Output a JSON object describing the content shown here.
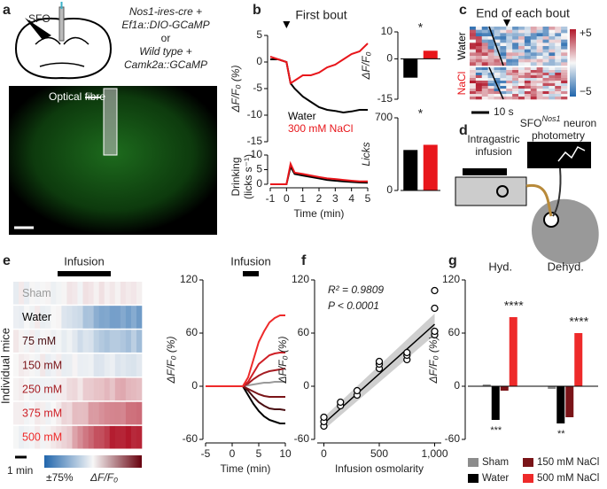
{
  "figure": {
    "panel_labels": [
      "a",
      "b",
      "c",
      "d",
      "e",
      "f",
      "g"
    ],
    "a": {
      "region": "SFO",
      "lines": [
        "Nos1-ires-cre +",
        "Ef1a::DIO-GCaMP",
        "or",
        "Wild type +",
        "Camk2a::GCaMP"
      ],
      "fibre": "Optical fibre"
    },
    "d": {
      "infusion": [
        "Intragastric",
        "infusion"
      ],
      "photometry": [
        "SFO",
        "Nos1",
        " neuron",
        "photometry"
      ]
    }
  },
  "chart_data": [
    {
      "type": "line",
      "annotation": "First bout",
      "ylabel": "ΔF/F₀ (%)",
      "x": [
        -1,
        -0.5,
        0,
        0.25,
        0.5,
        1,
        1.5,
        2,
        2.5,
        3,
        3.5,
        4,
        4.5,
        5
      ],
      "xlim": [
        -1,
        5
      ],
      "ylim": [
        -15,
        5
      ],
      "yticks": [
        -15,
        -10,
        -5,
        0,
        5
      ],
      "series": [
        {
          "name": "Water",
          "color": "#000000",
          "values": [
            0.5,
            0.5,
            0,
            -4,
            -5,
            -6.5,
            -7.5,
            -8.5,
            -9,
            -9.2,
            -9.5,
            -9.3,
            -9,
            -9
          ]
        },
        {
          "name": "300 mM NaCl",
          "color": "#e8161b",
          "values": [
            1,
            0.5,
            0,
            -4,
            -3.5,
            -2.5,
            -2.5,
            -2,
            -1,
            -0.5,
            0.5,
            1.5,
            2,
            3.5
          ]
        }
      ]
    },
    {
      "type": "line",
      "ylabel_lines": [
        "Drinking",
        "(licks s⁻¹)"
      ],
      "xlabel": "Time (min)",
      "x": [
        -1,
        -0.5,
        0,
        0.25,
        0.5,
        1,
        1.5,
        2,
        2.5,
        3,
        3.5,
        4,
        4.5,
        5
      ],
      "xlim": [
        -1,
        5
      ],
      "xticks": [
        -1,
        0,
        1,
        2,
        3,
        4,
        5
      ],
      "ylim": [
        0,
        10
      ],
      "yticks": [
        0,
        5,
        10
      ],
      "series": [
        {
          "color": "#000000",
          "values": [
            0,
            0,
            0,
            6,
            3.5,
            3,
            2.5,
            2,
            1.5,
            1.2,
            1,
            0.8,
            0.6,
            0.5
          ]
        },
        {
          "color": "#e8161b",
          "values": [
            0,
            0,
            0,
            7,
            4,
            3.5,
            3,
            2.5,
            2,
            1.8,
            1.5,
            1.2,
            1,
            1
          ]
        }
      ]
    },
    {
      "type": "bar",
      "ylabel": "ΔF/F₀",
      "annotation": "*",
      "categories": [
        null,
        null
      ],
      "values": [
        -7,
        3
      ],
      "colors": [
        "#000000",
        "#e8161b"
      ],
      "ylim": [
        -15,
        10
      ],
      "yticks": [
        -15,
        0,
        10
      ]
    },
    {
      "type": "bar",
      "ylabel": "Licks",
      "annotation": "*",
      "categories": [
        null,
        null
      ],
      "values": [
        390,
        440
      ],
      "colors": [
        "#000000",
        "#e8161b"
      ],
      "ylim": [
        0,
        700
      ],
      "yticks": [
        0,
        700
      ]
    },
    {
      "type": "heatmap",
      "title": "End of each bout",
      "rows": [
        "Water",
        "NaCl"
      ],
      "row_colors": [
        "#000000",
        "#e8161b"
      ],
      "scale_bar": "10 s",
      "colorbar_ticks": [
        {
          "value": 5,
          "label": "+5"
        },
        {
          "value": -5,
          "label": "−5"
        }
      ]
    },
    {
      "type": "heatmap",
      "annotation": "Infusion",
      "ylabel": "Individual mice",
      "rows": [
        "Sham",
        "Water",
        "75 mM",
        "150 mM",
        "250 mM",
        "375 mM",
        "500 mM"
      ],
      "scale_bar": "1 min",
      "colorbar_ticks": [
        {
          "value": 75,
          "label": "±75%"
        }
      ],
      "colorbar_label": "ΔF/F₀"
    },
    {
      "type": "line",
      "annotation": "Infusion",
      "ylabel": "ΔF/F₀ (%)",
      "xlabel": "Time (min)",
      "x": [
        -5,
        -2.5,
        0,
        2,
        3,
        4,
        5,
        6,
        7,
        8,
        9,
        10
      ],
      "xlim": [
        -5,
        10
      ],
      "xticks": [
        -5,
        0,
        5,
        10
      ],
      "ylim": [
        -60,
        120
      ],
      "yticks": [
        -60,
        0,
        60,
        120
      ],
      "series": [
        {
          "color": "#9a9a9a",
          "values": [
            0,
            0,
            0,
            0,
            1,
            2,
            3,
            4,
            4,
            5,
            5,
            5
          ]
        },
        {
          "color": "#000000",
          "values": [
            0,
            0,
            0,
            0,
            -10,
            -20,
            -28,
            -34,
            -38,
            -40,
            -42,
            -42
          ]
        },
        {
          "color": "#4a0f12",
          "values": [
            0,
            0,
            0,
            0,
            -5,
            -12,
            -18,
            -22,
            -25,
            -26,
            -26,
            -27
          ]
        },
        {
          "color": "#7a1418",
          "values": [
            0,
            0,
            0,
            0,
            -3,
            -6,
            -9,
            -11,
            -12,
            -12,
            -12,
            -12
          ]
        },
        {
          "color": "#a51c22",
          "values": [
            0,
            0,
            0,
            0,
            3,
            8,
            12,
            15,
            17,
            18,
            19,
            20
          ]
        },
        {
          "color": "#cf1f26",
          "values": [
            0,
            0,
            0,
            0,
            5,
            15,
            25,
            30,
            35,
            37,
            38,
            38
          ]
        },
        {
          "color": "#ee2a2a",
          "values": [
            0,
            0,
            0,
            0,
            10,
            30,
            50,
            62,
            72,
            77,
            80,
            80
          ]
        }
      ]
    },
    {
      "type": "scatter",
      "xlabel": "Infusion osmolarity",
      "ylabel": "ΔF/F₀ (%)",
      "annotations": [
        "R² = 0.9809",
        "P < 0.0001"
      ],
      "x": [
        0,
        0,
        0,
        150,
        150,
        300,
        300,
        500,
        500,
        500,
        750,
        750,
        750,
        1000,
        1000,
        1000,
        1000
      ],
      "values": [
        -45,
        -40,
        -35,
        -22,
        -18,
        -10,
        -5,
        20,
        25,
        28,
        30,
        35,
        38,
        58,
        62,
        88,
        108
      ],
      "fit": {
        "x": [
          0,
          1000
        ],
        "values": [
          -42,
          70
        ]
      },
      "xlim": [
        -60,
        1060
      ],
      "xticks": [
        0,
        500,
        {
          "value": 1000,
          "label": "1,000"
        }
      ],
      "ylim": [
        -60,
        120
      ],
      "yticks": [
        -60,
        0,
        60,
        120
      ]
    },
    {
      "type": "bar",
      "ylabel": "ΔF/F₀ (%)",
      "categories": [
        "Hyd.",
        "Dehyd."
      ],
      "series": [
        {
          "name": "Sham",
          "color": "#8c8c8c",
          "values": [
            2,
            -3
          ]
        },
        {
          "name": "Water",
          "color": "#000000",
          "values": [
            -38,
            -42
          ]
        },
        {
          "name": "150 mM NaCl",
          "color": "#7a1418",
          "values": [
            -5,
            -35
          ]
        },
        {
          "name": "500 mM NaCl",
          "color": "#ee2a2a",
          "values": [
            78,
            60
          ]
        }
      ],
      "annotations": [
        "***",
        "****",
        "**",
        "****"
      ],
      "ylim": [
        -60,
        120
      ],
      "yticks": [
        -60,
        0,
        60,
        120
      ]
    }
  ]
}
